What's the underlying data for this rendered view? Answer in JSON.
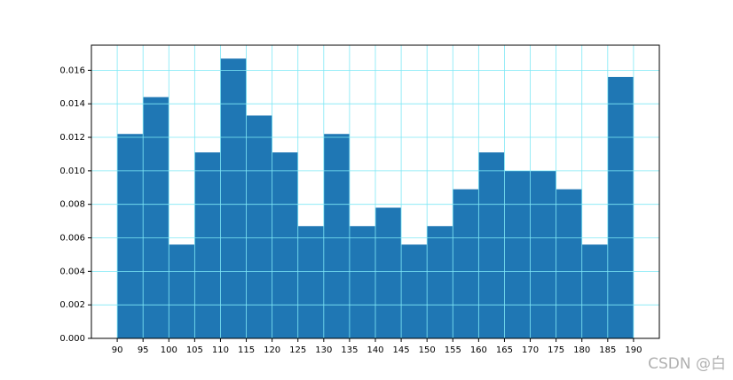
{
  "chart_data": {
    "type": "histogram",
    "bins": [
      90,
      95,
      100,
      105,
      110,
      115,
      120,
      125,
      130,
      135,
      140,
      145,
      150,
      155,
      160,
      165,
      170,
      175,
      180,
      185,
      190
    ],
    "values": [
      0.0122,
      0.0144,
      0.0056,
      0.0111,
      0.0167,
      0.0133,
      0.0111,
      0.0067,
      0.0122,
      0.0067,
      0.0078,
      0.0056,
      0.0067,
      0.0089,
      0.0111,
      0.01,
      0.01,
      0.0089,
      0.0056,
      0.0156
    ],
    "color": "#1f77b4",
    "xlim": [
      85,
      195
    ],
    "ylim": [
      0,
      0.0175
    ],
    "xticks": [
      90,
      95,
      100,
      105,
      110,
      115,
      120,
      125,
      130,
      135,
      140,
      145,
      150,
      155,
      160,
      165,
      170,
      175,
      180,
      185,
      190
    ],
    "yticks": [
      {
        "value": 0,
        "label": "0.000"
      },
      {
        "value": 0.002,
        "label": "0.002"
      },
      {
        "value": 0.004,
        "label": "0.004"
      },
      {
        "value": 0.006,
        "label": "0.006"
      },
      {
        "value": 0.008,
        "label": "0.008"
      },
      {
        "value": 0.01,
        "label": "0.010"
      },
      {
        "value": 0.012,
        "label": "0.012"
      },
      {
        "value": 0.014,
        "label": "0.014"
      },
      {
        "value": 0.016,
        "label": "0.016"
      }
    ],
    "grid": true,
    "grid_color": "#7fe8f5",
    "watermark": "CSDN @白"
  }
}
